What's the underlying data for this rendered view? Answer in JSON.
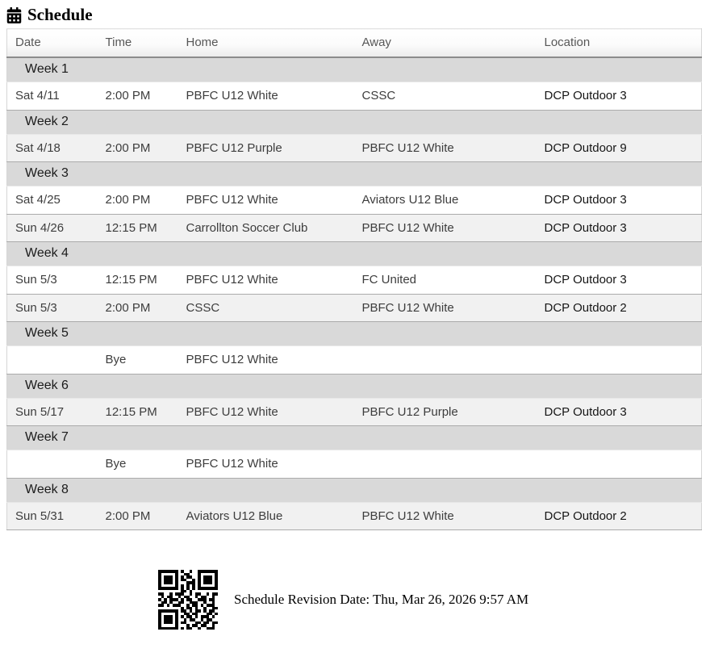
{
  "page": {
    "title": "Schedule"
  },
  "table": {
    "columns": [
      "Date",
      "Time",
      "Home",
      "Away",
      "Location"
    ],
    "weeks": [
      {
        "label": "Week 1",
        "games": [
          {
            "date": "Sat 4/11",
            "time": "2:00 PM",
            "home": "PBFC U12 White",
            "away": "CSSC",
            "location": "DCP Outdoor 3"
          }
        ]
      },
      {
        "label": "Week 2",
        "games": [
          {
            "date": "Sat 4/18",
            "time": "2:00 PM",
            "home": "PBFC U12 Purple",
            "away": "PBFC U12 White",
            "location": "DCP Outdoor 9"
          }
        ]
      },
      {
        "label": "Week 3",
        "games": [
          {
            "date": "Sat 4/25",
            "time": "2:00 PM",
            "home": "PBFC U12 White",
            "away": "Aviators U12 Blue",
            "location": "DCP Outdoor 3"
          },
          {
            "date": "Sun 4/26",
            "time": "12:15 PM",
            "home": "Carrollton Soccer Club",
            "away": "PBFC U12 White",
            "location": "DCP Outdoor 3"
          }
        ]
      },
      {
        "label": "Week 4",
        "games": [
          {
            "date": "Sun 5/3",
            "time": "12:15 PM",
            "home": "PBFC U12 White",
            "away": "FC United",
            "location": "DCP Outdoor 3"
          },
          {
            "date": "Sun 5/3",
            "time": "2:00 PM",
            "home": "CSSC",
            "away": "PBFC U12 White",
            "location": "DCP Outdoor 2"
          }
        ]
      },
      {
        "label": "Week 5",
        "games": [
          {
            "date": "",
            "time": "Bye",
            "home": "PBFC U12 White",
            "away": "",
            "location": ""
          }
        ]
      },
      {
        "label": "Week 6",
        "games": [
          {
            "date": "Sun 5/17",
            "time": "12:15 PM",
            "home": "PBFC U12 White",
            "away": "PBFC U12 Purple",
            "location": "DCP Outdoor 3"
          }
        ]
      },
      {
        "label": "Week 7",
        "games": [
          {
            "date": "",
            "time": "Bye",
            "home": "PBFC U12 White",
            "away": "",
            "location": ""
          }
        ]
      },
      {
        "label": "Week 8",
        "games": [
          {
            "date": "Sun 5/31",
            "time": "2:00 PM",
            "home": "Aviators U12 Blue",
            "away": "PBFC U12 White",
            "location": "DCP Outdoor 2"
          }
        ]
      }
    ]
  },
  "footer": {
    "revision_text": "Schedule Revision Date: Thu, Mar 26, 2026 9:57 AM",
    "qr_icon": "qr-code-icon",
    "qr_matrix": [
      "111111101001001111111",
      "100000100110001000001",
      "101110101011001011101",
      "101110101100101011101",
      "101110100011101011101",
      "100000101010101000001",
      "111111101010101111111",
      "000000001101000000000",
      "110010111001011001011",
      "010110010110010110010",
      "101011101011001110110",
      "011010011001110010010",
      "110101110010110101110",
      "000000001011010010011",
      "111111101101011010110",
      "100000100110110001101",
      "101110101011010111010",
      "101110100101100101100",
      "101110101100011011011",
      "100000100010110110010",
      "111111101011001001110"
    ]
  },
  "icons": {
    "title_icon": "calendar-icon"
  },
  "colors": {
    "week_row_bg": "#d9d9d9",
    "stripe_row_bg": "#f1f1f1",
    "header_border": "#8c8c8c",
    "row_border": "#ababab",
    "table_border": "#d6d6d6",
    "header_text": "#575757",
    "cell_text": "#3d3d3d",
    "week_text": "#1b1b1b",
    "location_text": "#161616"
  }
}
